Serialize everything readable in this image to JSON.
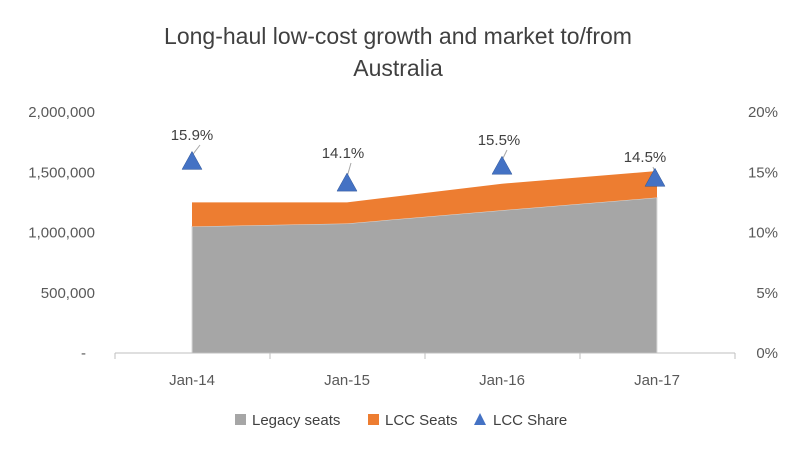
{
  "chart_data": {
    "type": "area",
    "title_lines": [
      "Long-haul low-cost growth and market to/from",
      "Australia"
    ],
    "categories": [
      "Jan-14",
      "Jan-15",
      "Jan-16",
      "Jan-17"
    ],
    "y_left": {
      "ylim": [
        0,
        2000000
      ],
      "ticks": [
        "-",
        "500,000",
        "1,000,000",
        "1,500,000",
        "2,000,000"
      ]
    },
    "y_right": {
      "ylim": [
        0,
        20
      ],
      "ticks": [
        "0%",
        "5%",
        "10%",
        "15%",
        "20%"
      ]
    },
    "series": [
      {
        "name": "Legacy seats",
        "type": "stacked-area",
        "axis": "left",
        "color": "#a6a6a6",
        "values": [
          1050000,
          1075000,
          1185000,
          1290000
        ]
      },
      {
        "name": "LCC Seats",
        "type": "stacked-area",
        "axis": "left",
        "color": "#ed7d31",
        "values": [
          200000,
          175000,
          220000,
          220000
        ]
      },
      {
        "name": "LCC Share",
        "type": "triangle-markers",
        "axis": "right",
        "color": "#4472c4",
        "values": [
          15.9,
          14.1,
          15.5,
          14.5
        ],
        "labels": [
          "15.9%",
          "14.1%",
          "15.5%",
          "14.5%"
        ]
      }
    ],
    "grid": false,
    "legend_position": "bottom"
  }
}
